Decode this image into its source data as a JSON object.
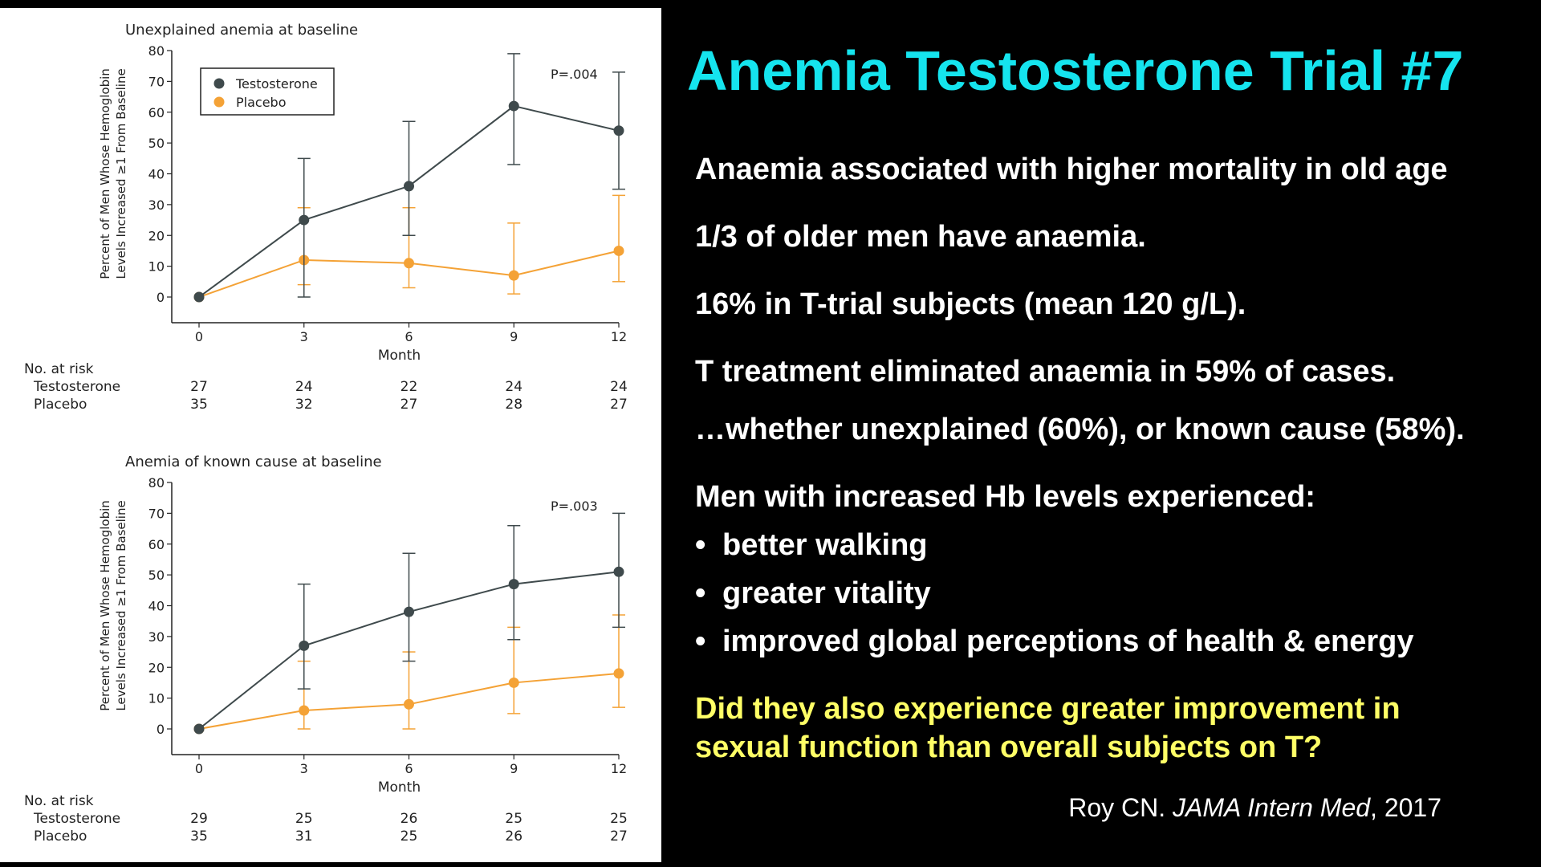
{
  "slide": {
    "title": "Anemia Testosterone Trial #7",
    "points": [
      "Anaemia associated with higher mortality in old age",
      "1/3 of older men have anaemia.",
      "16% in T-trial subjects (mean 120 g/L).",
      "T treatment eliminated anaemia in 59% of cases.",
      "…whether unexplained (60%), or known cause (58%).",
      "Men with increased Hb levels experienced:"
    ],
    "bullets": [
      "better walking",
      "greater vitality",
      "improved global perceptions of health & energy"
    ],
    "question_line1": "Did they also experience greater improvement in",
    "question_line2": "sexual function than overall subjects on T?",
    "citation_author": "Roy CN.",
    "citation_journal": "JAMA Intern Med",
    "citation_year": ", 2017",
    "colors": {
      "title": "#15e4ee",
      "question": "#ffff66",
      "text": "#ffffff",
      "background": "#000000"
    }
  },
  "chart_data": [
    {
      "type": "line",
      "title": "Unexplained anemia at baseline",
      "xlabel": "Month",
      "ylabel_line1": "Percent of Men Whose Hemoglobin",
      "ylabel_line2": "Levels Increased ≥1 From Baseline",
      "x": [
        0,
        3,
        6,
        9,
        12
      ],
      "ylim": [
        0,
        80
      ],
      "yticks": [
        0,
        10,
        20,
        30,
        40,
        50,
        60,
        70,
        80
      ],
      "legend": "top-left",
      "annotation": "P=.004",
      "series": [
        {
          "name": "Testosterone",
          "color": "#3f4a4c",
          "values": [
            0,
            25,
            36,
            62,
            54
          ],
          "err_low": [
            0,
            0,
            20,
            43,
            35
          ],
          "err_high": [
            0,
            45,
            57,
            79,
            73
          ]
        },
        {
          "name": "Placebo",
          "color": "#f4a236",
          "values": [
            0,
            12,
            11,
            7,
            15
          ],
          "err_low": [
            0,
            4,
            3,
            1,
            5
          ],
          "err_high": [
            0,
            29,
            29,
            24,
            33
          ]
        }
      ],
      "risk_label": "No. at risk",
      "risk": [
        {
          "name": "Testosterone",
          "counts": [
            27,
            24,
            22,
            24,
            24
          ]
        },
        {
          "name": "Placebo",
          "counts": [
            35,
            32,
            27,
            28,
            27
          ]
        }
      ]
    },
    {
      "type": "line",
      "title": "Anemia of known cause at baseline",
      "xlabel": "Month",
      "ylabel_line1": "Percent of Men Whose Hemoglobin",
      "ylabel_line2": "Levels Increased ≥1 From Baseline",
      "x": [
        0,
        3,
        6,
        9,
        12
      ],
      "ylim": [
        0,
        80
      ],
      "yticks": [
        0,
        10,
        20,
        30,
        40,
        50,
        60,
        70,
        80
      ],
      "legend": "none",
      "annotation": "P=.003",
      "series": [
        {
          "name": "Testosterone",
          "color": "#3f4a4c",
          "values": [
            0,
            27,
            38,
            47,
            51
          ],
          "err_low": [
            0,
            13,
            22,
            29,
            33
          ],
          "err_high": [
            0,
            47,
            57,
            66,
            70
          ]
        },
        {
          "name": "Placebo",
          "color": "#f4a236",
          "values": [
            0,
            6,
            8,
            15,
            18
          ],
          "err_low": [
            0,
            0,
            0,
            5,
            7
          ],
          "err_high": [
            0,
            22,
            25,
            33,
            37
          ]
        }
      ],
      "risk_label": "No. at risk",
      "risk": [
        {
          "name": "Testosterone",
          "counts": [
            29,
            25,
            26,
            25,
            25
          ]
        },
        {
          "name": "Placebo",
          "counts": [
            35,
            31,
            25,
            26,
            27
          ]
        }
      ]
    }
  ]
}
